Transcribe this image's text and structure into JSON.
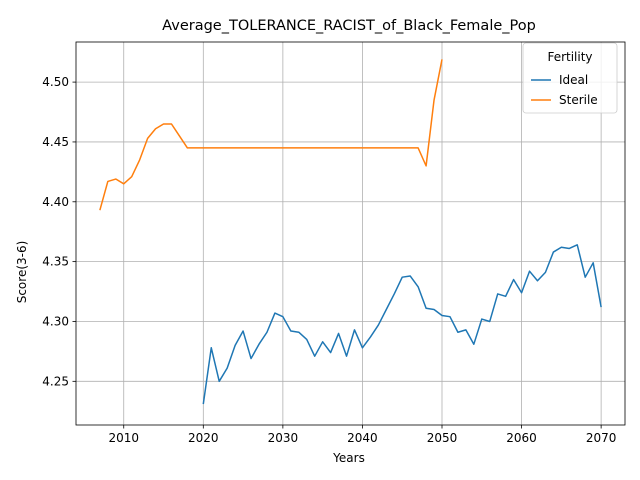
{
  "chart_data": {
    "type": "line",
    "title": "Average_TOLERANCE_RACIST_of_Black_Female_Pop",
    "xlabel": "Years",
    "ylabel": "Score(3-6)",
    "xlim": [
      2004,
      2073
    ],
    "ylim": [
      4.2135,
      4.5335
    ],
    "xticks": [
      2010,
      2020,
      2030,
      2040,
      2050,
      2060,
      2070
    ],
    "yticks": [
      4.25,
      4.3,
      4.35,
      4.4,
      4.45,
      4.5
    ],
    "ytick_labels": [
      "4.25",
      "4.30",
      "4.35",
      "4.40",
      "4.45",
      "4.50"
    ],
    "grid": true,
    "legend": {
      "title": "Fertility",
      "placement": "top-right"
    },
    "series": [
      {
        "name": "Ideal",
        "color": "#1f77b4",
        "x": [
          2020,
          2021,
          2022,
          2023,
          2024,
          2025,
          2026,
          2027,
          2028,
          2029,
          2030,
          2031,
          2032,
          2033,
          2034,
          2035,
          2036,
          2037,
          2038,
          2039,
          2040,
          2041,
          2042,
          2043,
          2044,
          2045,
          2046,
          2047,
          2048,
          2049,
          2050,
          2051,
          2052,
          2053,
          2054,
          2055,
          2056,
          2057,
          2058,
          2059,
          2060,
          2061,
          2062,
          2063,
          2064,
          2065,
          2066,
          2067,
          2068,
          2069,
          2070
        ],
        "values": [
          4.231,
          4.278,
          4.25,
          4.261,
          4.28,
          4.292,
          4.269,
          4.281,
          4.291,
          4.307,
          4.304,
          4.292,
          4.291,
          4.285,
          4.271,
          4.283,
          4.274,
          4.29,
          4.271,
          4.293,
          4.278,
          4.287,
          4.297,
          4.31,
          4.323,
          4.337,
          4.338,
          4.329,
          4.311,
          4.31,
          4.305,
          4.304,
          4.291,
          4.293,
          4.281,
          4.302,
          4.3,
          4.323,
          4.321,
          4.335,
          4.324,
          4.342,
          4.334,
          4.341,
          4.358,
          4.362,
          4.361,
          4.364,
          4.337,
          4.349,
          4.312
        ]
      },
      {
        "name": "Sterile",
        "color": "#ff7f0e",
        "x": [
          2007,
          2008,
          2009,
          2010,
          2011,
          2012,
          2013,
          2014,
          2015,
          2016,
          2017,
          2018,
          2019,
          2020,
          2021,
          2022,
          2023,
          2024,
          2025,
          2026,
          2027,
          2028,
          2029,
          2030,
          2031,
          2032,
          2033,
          2034,
          2035,
          2036,
          2037,
          2038,
          2039,
          2040,
          2041,
          2042,
          2043,
          2044,
          2045,
          2046,
          2047,
          2048,
          2049,
          2050
        ],
        "values": [
          4.393,
          4.417,
          4.419,
          4.415,
          4.421,
          4.435,
          4.453,
          4.461,
          4.465,
          4.465,
          4.455,
          4.445,
          4.445,
          4.445,
          4.445,
          4.445,
          4.445,
          4.445,
          4.445,
          4.445,
          4.445,
          4.445,
          4.445,
          4.445,
          4.445,
          4.445,
          4.445,
          4.445,
          4.445,
          4.445,
          4.445,
          4.445,
          4.445,
          4.445,
          4.445,
          4.445,
          4.445,
          4.445,
          4.445,
          4.445,
          4.445,
          4.43,
          4.485,
          4.519
        ]
      }
    ]
  }
}
